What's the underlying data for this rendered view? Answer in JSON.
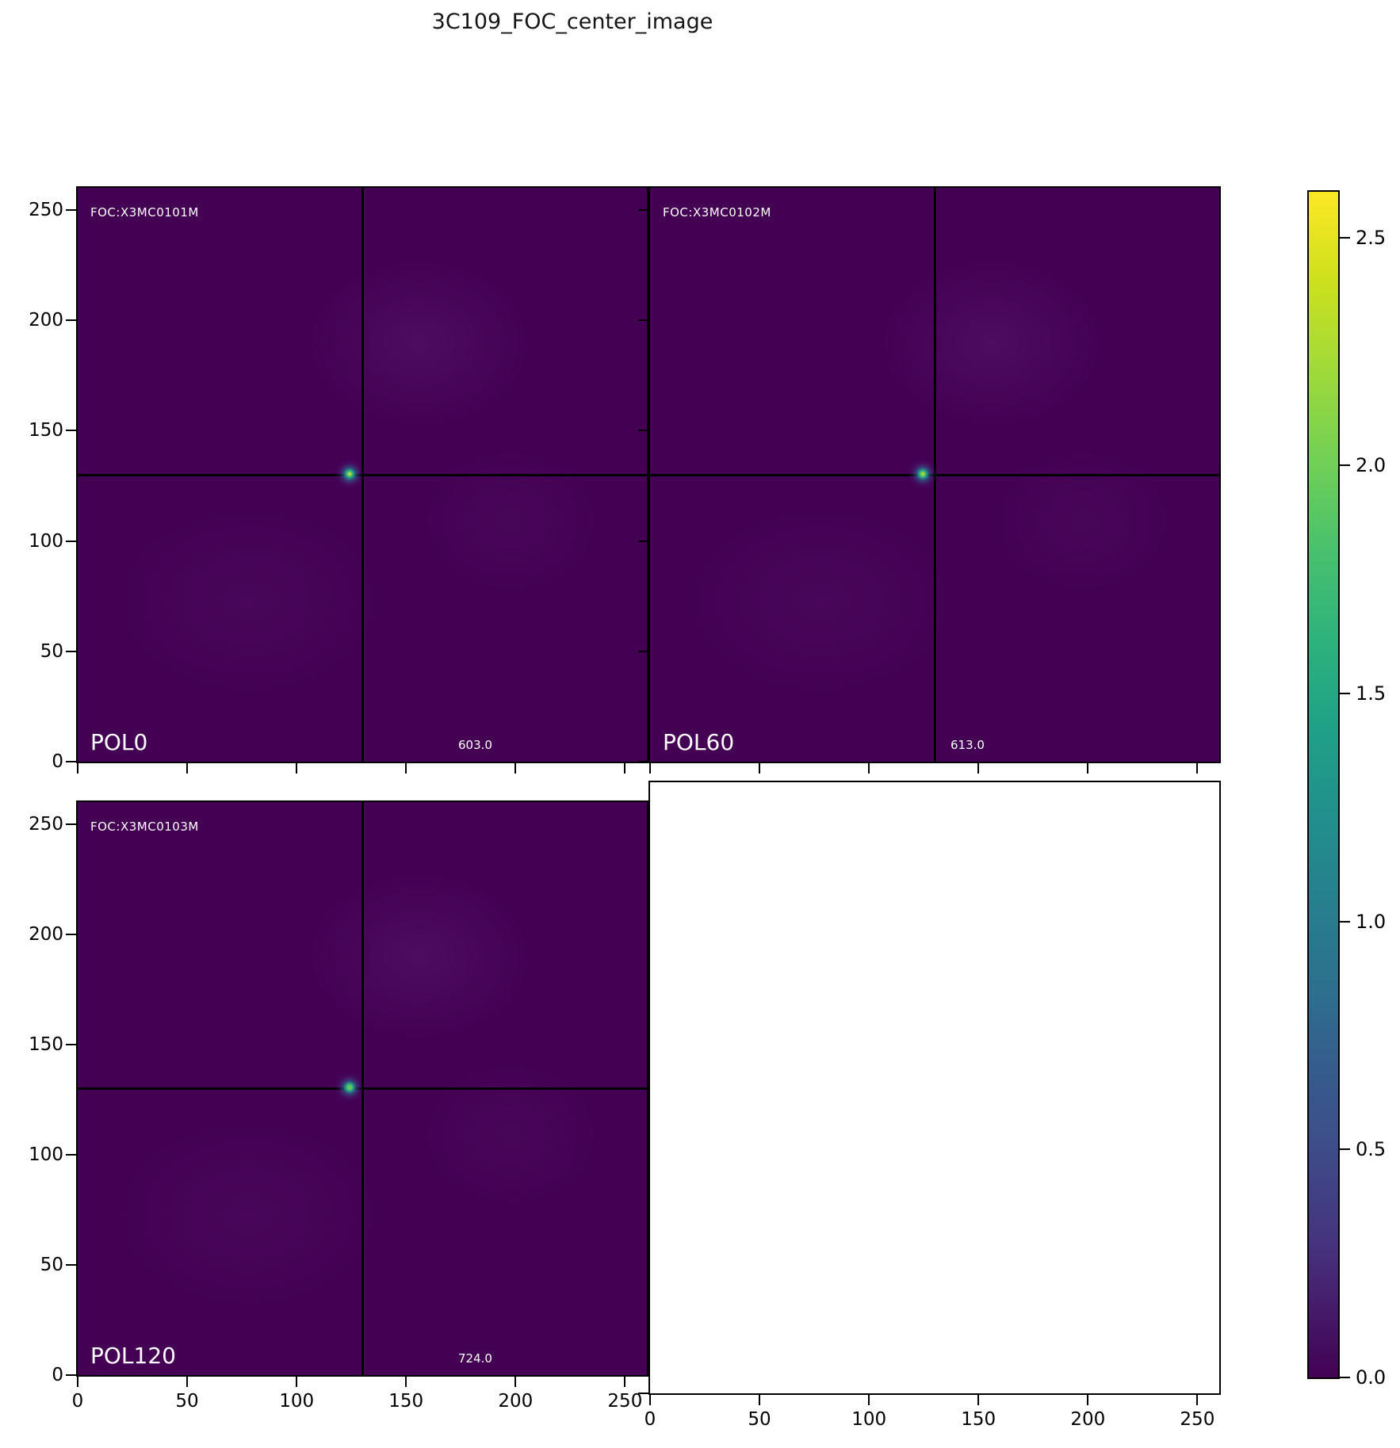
{
  "title": "3C109_FOC_center_image",
  "panels": [
    {
      "id": "pol0",
      "obs_id": "FOC:X3MC0101M",
      "pol_label": "POL0",
      "value_label": "603.0",
      "spot_core_color": "#e8e337"
    },
    {
      "id": "pol60",
      "obs_id": "FOC:X3MC0102M",
      "pol_label": "POL60",
      "value_label": "613.0",
      "spot_core_color": "#d2e21b"
    },
    {
      "id": "pol120",
      "obs_id": "FOC:X3MC0103M",
      "pol_label": "POL120",
      "value_label": "724.0",
      "spot_core_color": "#54c568"
    },
    {
      "id": "empty"
    }
  ],
  "axes": {
    "tick_labels": [
      "0",
      "50",
      "100",
      "150",
      "200",
      "250"
    ],
    "tick_values": [
      0,
      50,
      100,
      150,
      200,
      250
    ],
    "axis_max": 260
  },
  "colorbar": {
    "colormap": "viridis",
    "tick_labels": [
      "2.5",
      "2.0",
      "1.5",
      "1.0",
      "0.5",
      "0.0"
    ],
    "tick_values": [
      2.5,
      2.0,
      1.5,
      1.0,
      0.5,
      0.0
    ],
    "vmin": 0.0,
    "vmax": 2.6
  },
  "colors": {
    "image_background": "#440154",
    "crosshair": "#000000",
    "annotation_text": "#ffffff",
    "colormap_low": "#440154",
    "colormap_high": "#fde725"
  },
  "chart_data": {
    "type": "heatmap",
    "title": "3C109_FOC_center_image",
    "layout": "2x2 grid of FOC polarizer images, bottom-right cell is an empty axes; shared x/y axes; viridis colorbar on right",
    "x_range": [
      0,
      260
    ],
    "y_range": [
      0,
      260
    ],
    "x_ticks": [
      0,
      50,
      100,
      150,
      200,
      250
    ],
    "y_ticks": [
      0,
      50,
      100,
      150,
      200,
      250
    ],
    "colorbar": {
      "min": 0.0,
      "max": 2.6,
      "ticks": [
        0.0,
        0.5,
        1.0,
        1.5,
        2.0,
        2.5
      ],
      "colormap": "viridis"
    },
    "background_value": 0.0,
    "panels": [
      {
        "position": "top-left",
        "label": "POL0",
        "observation_id": "FOC:X3MC0101M",
        "annotation_value": 603.0,
        "crosshair_xy": [
          130,
          130
        ],
        "point_source_xy": [
          124,
          130
        ]
      },
      {
        "position": "top-right",
        "label": "POL60",
        "observation_id": "FOC:X3MC0102M",
        "annotation_value": 613.0,
        "crosshair_xy": [
          130,
          130
        ],
        "point_source_xy": [
          124,
          130
        ]
      },
      {
        "position": "bottom-left",
        "label": "POL120",
        "observation_id": "FOC:X3MC0103M",
        "annotation_value": 724.0,
        "crosshair_xy": [
          130,
          130
        ],
        "point_source_xy": [
          124,
          130
        ]
      },
      {
        "position": "bottom-right",
        "label": null,
        "observation_id": null,
        "annotation_value": null,
        "note": "empty axes"
      }
    ]
  }
}
